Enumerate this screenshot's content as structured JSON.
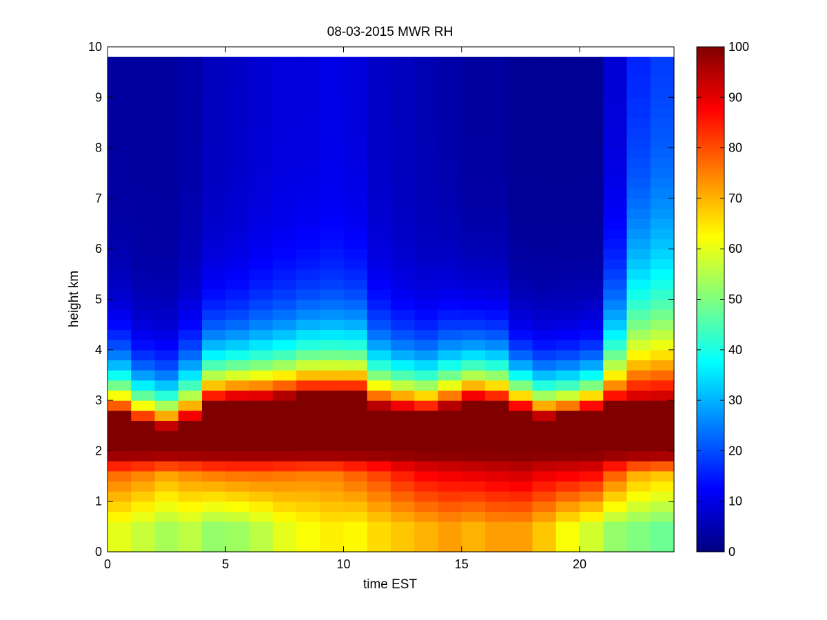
{
  "chart_data": {
    "type": "heatmap",
    "title": "08-03-2015 MWR RH",
    "xlabel": "time EST",
    "ylabel": "height km",
    "xlim": [
      0,
      24
    ],
    "ylim": [
      0,
      10
    ],
    "xticks": [
      0,
      5,
      10,
      15,
      20
    ],
    "yticks": [
      0,
      1,
      2,
      3,
      4,
      5,
      6,
      7,
      8,
      9,
      10
    ],
    "colorbar": {
      "colormap": "jet",
      "range": [
        0,
        100
      ],
      "ticks": [
        0,
        10,
        20,
        30,
        40,
        50,
        60,
        70,
        80,
        90,
        100
      ]
    },
    "x": [
      0,
      1,
      2,
      3,
      4,
      5,
      6,
      7,
      8,
      9,
      10,
      11,
      12,
      13,
      14,
      15,
      16,
      17,
      18,
      19,
      20,
      21,
      22,
      23
    ],
    "y": [
      0.1,
      0.3,
      0.5,
      0.7,
      0.9,
      1.1,
      1.3,
      1.5,
      1.7,
      1.9,
      2.1,
      2.3,
      2.5,
      2.7,
      2.9,
      3.1,
      3.3,
      3.5,
      3.7,
      3.9,
      4.1,
      4.3,
      4.5,
      4.7,
      4.9,
      5.1,
      5.3,
      5.5,
      5.7,
      5.9,
      6.1,
      6.3,
      6.5,
      6.7,
      6.9,
      7.1,
      7.3,
      7.5,
      7.7,
      7.9,
      8.1,
      8.3,
      8.5,
      8.7,
      8.9,
      9.1,
      9.3,
      9.5,
      9.7
    ],
    "profiles": [
      {
        "low": 60,
        "mid": 78,
        "top": 2.7,
        "dec": 0.8,
        "bg": 3
      },
      {
        "low": 57,
        "mid": 76,
        "top": 2.55,
        "dec": 0.7,
        "bg": 3
      },
      {
        "low": 54,
        "mid": 73,
        "top": 2.45,
        "dec": 0.7,
        "bg": 3
      },
      {
        "low": 56,
        "mid": 75,
        "top": 2.6,
        "dec": 0.8,
        "bg": 4
      },
      {
        "low": 52,
        "mid": 77,
        "top": 2.95,
        "dec": 0.85,
        "bg": 6
      },
      {
        "low": 53,
        "mid": 78,
        "top": 3.0,
        "dec": 0.85,
        "bg": 7
      },
      {
        "low": 56,
        "mid": 78,
        "top": 3.0,
        "dec": 0.9,
        "bg": 8
      },
      {
        "low": 60,
        "mid": 77,
        "top": 3.05,
        "dec": 0.9,
        "bg": 9
      },
      {
        "low": 62,
        "mid": 76,
        "top": 3.1,
        "dec": 0.95,
        "bg": 9
      },
      {
        "low": 64,
        "mid": 76,
        "top": 3.1,
        "dec": 0.95,
        "bg": 10
      },
      {
        "low": 63,
        "mid": 79,
        "top": 3.1,
        "dec": 0.95,
        "bg": 9
      },
      {
        "low": 66,
        "mid": 82,
        "top": 2.85,
        "dec": 0.85,
        "bg": 7
      },
      {
        "low": 68,
        "mid": 86,
        "top": 2.8,
        "dec": 0.8,
        "bg": 6
      },
      {
        "low": 70,
        "mid": 89,
        "top": 2.75,
        "dec": 0.8,
        "bg": 5
      },
      {
        "low": 72,
        "mid": 90,
        "top": 2.85,
        "dec": 0.85,
        "bg": 4
      },
      {
        "low": 70,
        "mid": 91,
        "top": 3.0,
        "dec": 0.8,
        "bg": 3
      },
      {
        "low": 72,
        "mid": 92,
        "top": 2.95,
        "dec": 0.8,
        "bg": 3
      },
      {
        "low": 72,
        "mid": 93,
        "top": 2.8,
        "dec": 0.7,
        "bg": 2
      },
      {
        "low": 68,
        "mid": 91,
        "top": 2.65,
        "dec": 0.7,
        "bg": 2
      },
      {
        "low": 62,
        "mid": 90,
        "top": 2.7,
        "dec": 0.7,
        "bg": 2
      },
      {
        "low": 58,
        "mid": 89,
        "top": 2.8,
        "dec": 0.7,
        "bg": 2
      },
      {
        "low": 52,
        "mid": 80,
        "top": 2.9,
        "dec": 1.2,
        "bg": 8
      },
      {
        "low": 50,
        "mid": 72,
        "top": 2.9,
        "dec": 1.8,
        "bg": 14
      },
      {
        "low": 48,
        "mid": 70,
        "top": 2.9,
        "dec": 1.9,
        "bg": 16
      }
    ]
  }
}
